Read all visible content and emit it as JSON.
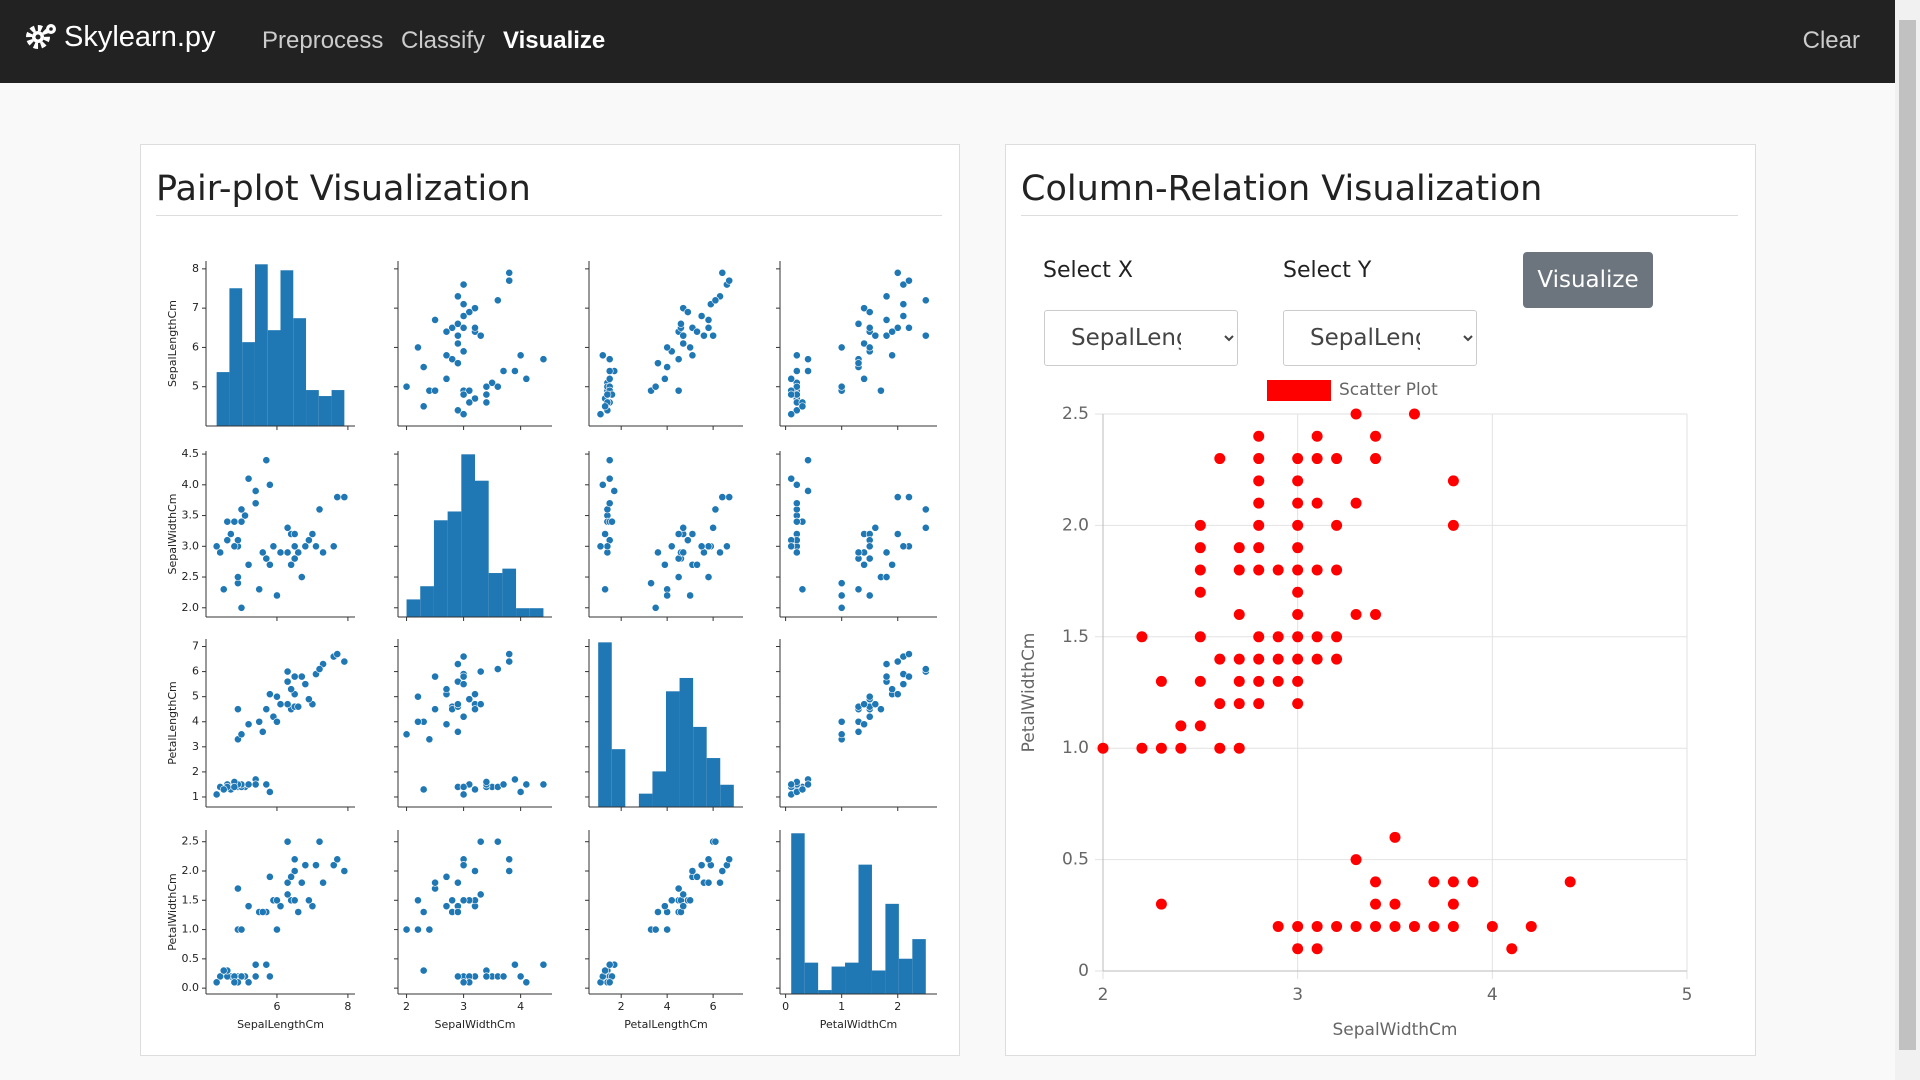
{
  "navbar": {
    "brand": "Skylearn.py",
    "links": [
      "Preprocess",
      "Classify",
      "Visualize"
    ],
    "active": 2,
    "clear": "Clear"
  },
  "panels": {
    "pair_title": "Pair-plot Visualization",
    "relation_title": "Column-Relation Visualization"
  },
  "controls": {
    "select_x_label": "Select X",
    "select_y_label": "Select Y",
    "select_x_value": "SepalLengthCm",
    "select_y_value": "SepalLengthCm",
    "button": "Visualize"
  },
  "chart_data": [
    {
      "type": "pairplot",
      "color": "#1f77b4",
      "variables": [
        {
          "name": "SepalLengthCm",
          "lim": [
            4.0,
            8.2
          ],
          "xticks": [
            6,
            8
          ],
          "yticks": [
            5,
            6,
            7,
            8
          ],
          "bins": [
            4.3,
            4.66,
            5.02,
            5.38,
            5.74,
            6.1,
            6.46,
            6.82,
            7.18,
            7.54,
            7.9
          ],
          "counts": [
            9,
            23,
            14,
            27,
            16,
            26,
            18,
            6,
            5,
            6
          ]
        },
        {
          "name": "SepalWidthCm",
          "lim": [
            1.85,
            4.55
          ],
          "xticks": [
            2,
            3,
            4
          ],
          "yticks": [
            {
              "value": 2,
              "label": "2.0"
            },
            2.5,
            {
              "value": 3,
              "label": "3.0"
            },
            3.5,
            {
              "value": 4,
              "label": "4.0"
            },
            4.5
          ],
          "bins": [
            2.0,
            2.24,
            2.48,
            2.72,
            2.96,
            3.2,
            3.44,
            3.68,
            3.92,
            4.16,
            4.4
          ],
          "counts": [
            4,
            7,
            22,
            24,
            37,
            31,
            10,
            11,
            2,
            2
          ]
        },
        {
          "name": "PetalLengthCm",
          "lim": [
            0.6,
            7.3
          ],
          "xticks": [
            2,
            4,
            6
          ],
          "yticks": [
            1,
            2,
            3,
            4,
            5,
            6,
            7
          ],
          "bins": [
            1.0,
            1.59,
            2.18,
            2.77,
            3.36,
            3.95,
            4.54,
            5.13,
            5.72,
            6.31,
            6.9
          ],
          "counts": [
            37,
            13,
            0,
            3,
            8,
            26,
            29,
            18,
            11,
            5
          ]
        },
        {
          "name": "PetalWidthCm",
          "lim": [
            -0.1,
            2.7
          ],
          "xticks": [
            0,
            1,
            2
          ],
          "yticks": [
            {
              "value": 0,
              "label": "0.0"
            },
            0.5,
            {
              "value": 1,
              "label": "1.0"
            },
            1.5,
            {
              "value": 2,
              "label": "2.0"
            },
            2.5
          ],
          "bins": [
            0.1,
            0.34,
            0.58,
            0.82,
            1.06,
            1.3,
            1.54,
            1.78,
            2.02,
            2.26,
            2.5
          ],
          "counts": [
            41,
            8,
            1,
            7,
            8,
            33,
            6,
            23,
            9,
            14
          ]
        }
      ],
      "samples": [
        [
          5.1,
          3.5,
          1.4,
          0.2
        ],
        [
          4.9,
          3.0,
          1.4,
          0.2
        ],
        [
          4.7,
          3.2,
          1.3,
          0.2
        ],
        [
          4.6,
          3.1,
          1.5,
          0.2
        ],
        [
          5.0,
          3.6,
          1.4,
          0.2
        ],
        [
          5.4,
          3.9,
          1.7,
          0.4
        ],
        [
          4.6,
          3.4,
          1.4,
          0.3
        ],
        [
          5.0,
          3.4,
          1.5,
          0.2
        ],
        [
          4.4,
          2.9,
          1.4,
          0.2
        ],
        [
          4.9,
          3.1,
          1.5,
          0.1
        ],
        [
          5.4,
          3.7,
          1.5,
          0.2
        ],
        [
          4.8,
          3.4,
          1.6,
          0.2
        ],
        [
          4.8,
          3.0,
          1.4,
          0.1
        ],
        [
          4.3,
          3.0,
          1.1,
          0.1
        ],
        [
          5.8,
          4.0,
          1.2,
          0.2
        ],
        [
          5.7,
          4.4,
          1.5,
          0.4
        ],
        [
          4.5,
          2.3,
          1.3,
          0.3
        ],
        [
          5.2,
          4.1,
          1.5,
          0.1
        ],
        [
          7.0,
          3.2,
          4.7,
          1.4
        ],
        [
          6.4,
          3.2,
          4.5,
          1.5
        ],
        [
          6.9,
          3.1,
          4.9,
          1.5
        ],
        [
          5.5,
          2.3,
          4.0,
          1.3
        ],
        [
          6.5,
          2.8,
          4.6,
          1.5
        ],
        [
          5.7,
          2.8,
          4.5,
          1.3
        ],
        [
          6.3,
          3.3,
          4.7,
          1.6
        ],
        [
          4.9,
          2.4,
          3.3,
          1.0
        ],
        [
          6.6,
          2.9,
          4.6,
          1.3
        ],
        [
          5.2,
          2.7,
          3.9,
          1.4
        ],
        [
          5.0,
          2.0,
          3.5,
          1.0
        ],
        [
          5.9,
          3.0,
          4.2,
          1.5
        ],
        [
          6.0,
          2.2,
          4.0,
          1.0
        ],
        [
          6.1,
          2.9,
          4.7,
          1.4
        ],
        [
          5.6,
          2.9,
          3.6,
          1.3
        ],
        [
          6.3,
          3.3,
          6.0,
          2.5
        ],
        [
          5.8,
          2.7,
          5.1,
          1.9
        ],
        [
          7.1,
          3.0,
          5.9,
          2.1
        ],
        [
          6.3,
          2.9,
          5.6,
          1.8
        ],
        [
          6.5,
          3.0,
          5.8,
          2.2
        ],
        [
          7.6,
          3.0,
          6.6,
          2.1
        ],
        [
          4.9,
          2.5,
          4.5,
          1.7
        ],
        [
          7.3,
          2.9,
          6.3,
          1.8
        ],
        [
          6.7,
          2.5,
          5.8,
          1.8
        ],
        [
          7.2,
          3.6,
          6.1,
          2.5
        ],
        [
          6.5,
          3.2,
          5.1,
          2.0
        ],
        [
          6.4,
          2.7,
          5.3,
          1.9
        ],
        [
          6.8,
          3.0,
          5.5,
          2.1
        ],
        [
          7.7,
          3.8,
          6.7,
          2.2
        ],
        [
          7.9,
          3.8,
          6.4,
          2.0
        ],
        [
          6.0,
          2.2,
          5.0,
          1.5
        ]
      ]
    },
    {
      "type": "scatter",
      "x_label": "SepalWidthCm",
      "y_label": "PetalWidthCm",
      "grid": true,
      "legend": "top",
      "xlim": [
        2,
        5
      ],
      "xticks": [
        2,
        3,
        4,
        5
      ],
      "ylim": [
        0,
        2.5
      ],
      "yticks": [
        0,
        0.5,
        {
          "value": 1,
          "label": "1.0"
        },
        1.5,
        {
          "value": 2,
          "label": "2.0"
        },
        2.5
      ],
      "series": [
        {
          "name": "Scatter Plot",
          "color": "#ff0000",
          "x": [
            3.3,
            3.6,
            2.8,
            3.1,
            3.4,
            2.6,
            2.8,
            3.0,
            3.1,
            3.2,
            3.4,
            2.8,
            3.0,
            3.8,
            2.8,
            3.0,
            3.1,
            3.3,
            2.5,
            2.8,
            3.0,
            3.2,
            3.8,
            2.5,
            2.7,
            2.8,
            3.0,
            2.5,
            2.7,
            2.8,
            2.9,
            3.0,
            3.1,
            3.2,
            2.5,
            3.0,
            2.7,
            3.0,
            3.3,
            3.4,
            2.2,
            2.5,
            2.8,
            2.9,
            3.0,
            3.1,
            3.2,
            2.6,
            2.7,
            2.8,
            2.9,
            3.0,
            3.1,
            3.2,
            2.3,
            2.5,
            2.7,
            2.8,
            2.9,
            3.0,
            2.6,
            2.7,
            2.8,
            3.0,
            2.4,
            2.5,
            2.0,
            2.2,
            2.3,
            2.4,
            2.6,
            2.7,
            3.5,
            3.3,
            3.4,
            3.7,
            3.8,
            3.9,
            4.4,
            2.3,
            3.4,
            3.5,
            3.8,
            2.9,
            3.0,
            3.1,
            3.2,
            3.3,
            3.4,
            3.5,
            3.6,
            3.7,
            3.8,
            4.0,
            4.2,
            3.0,
            3.1,
            4.1
          ],
          "values": [
            2.5,
            2.5,
            2.4,
            2.4,
            2.4,
            2.3,
            2.3,
            2.3,
            2.3,
            2.3,
            2.3,
            2.2,
            2.2,
            2.2,
            2.1,
            2.1,
            2.1,
            2.1,
            2.0,
            2.0,
            2.0,
            2.0,
            2.0,
            1.9,
            1.9,
            1.9,
            1.9,
            1.8,
            1.8,
            1.8,
            1.8,
            1.8,
            1.8,
            1.8,
            1.7,
            1.7,
            1.6,
            1.6,
            1.6,
            1.6,
            1.5,
            1.5,
            1.5,
            1.5,
            1.5,
            1.5,
            1.5,
            1.4,
            1.4,
            1.4,
            1.4,
            1.4,
            1.4,
            1.4,
            1.3,
            1.3,
            1.3,
            1.3,
            1.3,
            1.3,
            1.2,
            1.2,
            1.2,
            1.2,
            1.1,
            1.1,
            1.0,
            1.0,
            1.0,
            1.0,
            1.0,
            1.0,
            0.6,
            0.5,
            0.4,
            0.4,
            0.4,
            0.4,
            0.4,
            0.3,
            0.3,
            0.3,
            0.3,
            0.2,
            0.2,
            0.2,
            0.2,
            0.2,
            0.2,
            0.2,
            0.2,
            0.2,
            0.2,
            0.2,
            0.2,
            0.1,
            0.1,
            0.1
          ]
        }
      ]
    }
  ]
}
